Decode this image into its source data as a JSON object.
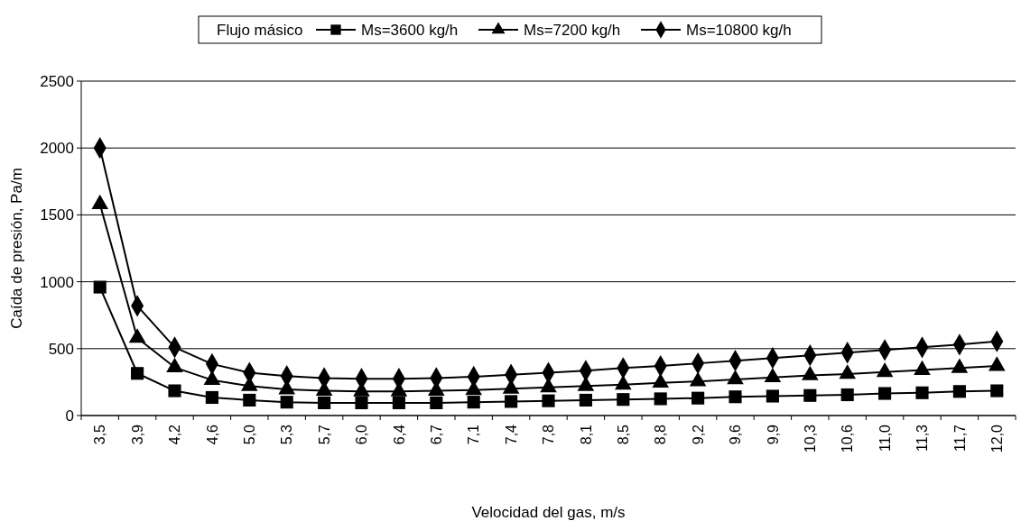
{
  "chart_data": {
    "type": "line",
    "xlabel": "Velocidad del gas, m/s",
    "ylabel": "Caída de presión, Pa/m",
    "legend_title": "Flujo másico",
    "legend": "top",
    "grid": "y",
    "line_style": "solid",
    "categories": [
      "3,5",
      "3,9",
      "4,2",
      "4,6",
      "5,0",
      "5,3",
      "5,7",
      "6,0",
      "6,4",
      "6,7",
      "7,1",
      "7,4",
      "7,8",
      "8,1",
      "8,5",
      "8,8",
      "9,2",
      "9,6",
      "9,9",
      "10,3",
      "10,6",
      "11,0",
      "11,3",
      "11,7",
      "12,0"
    ],
    "ylim": [
      0,
      2500
    ],
    "yticks": [
      0,
      500,
      1000,
      1500,
      2000,
      2500
    ],
    "series": [
      {
        "name": "Ms=3600 kg/h",
        "color": "#000000",
        "marker": "square",
        "values": [
          960,
          315,
          185,
          135,
          115,
          100,
          95,
          95,
          95,
          95,
          100,
          105,
          110,
          115,
          120,
          125,
          130,
          140,
          145,
          150,
          155,
          165,
          170,
          180,
          185
        ]
      },
      {
        "name": "Ms=7200 kg/h",
        "color": "#000000",
        "marker": "triangle",
        "values": [
          1580,
          580,
          360,
          265,
          220,
          195,
          185,
          180,
          180,
          185,
          190,
          200,
          210,
          220,
          230,
          245,
          255,
          270,
          285,
          300,
          310,
          325,
          340,
          355,
          370
        ]
      },
      {
        "name": "Ms=10800 kg/h",
        "color": "#000000",
        "marker": "diamond",
        "values": [
          2000,
          820,
          510,
          385,
          320,
          295,
          280,
          275,
          275,
          280,
          290,
          305,
          320,
          335,
          355,
          370,
          390,
          410,
          430,
          450,
          470,
          490,
          510,
          530,
          555
        ]
      }
    ]
  }
}
